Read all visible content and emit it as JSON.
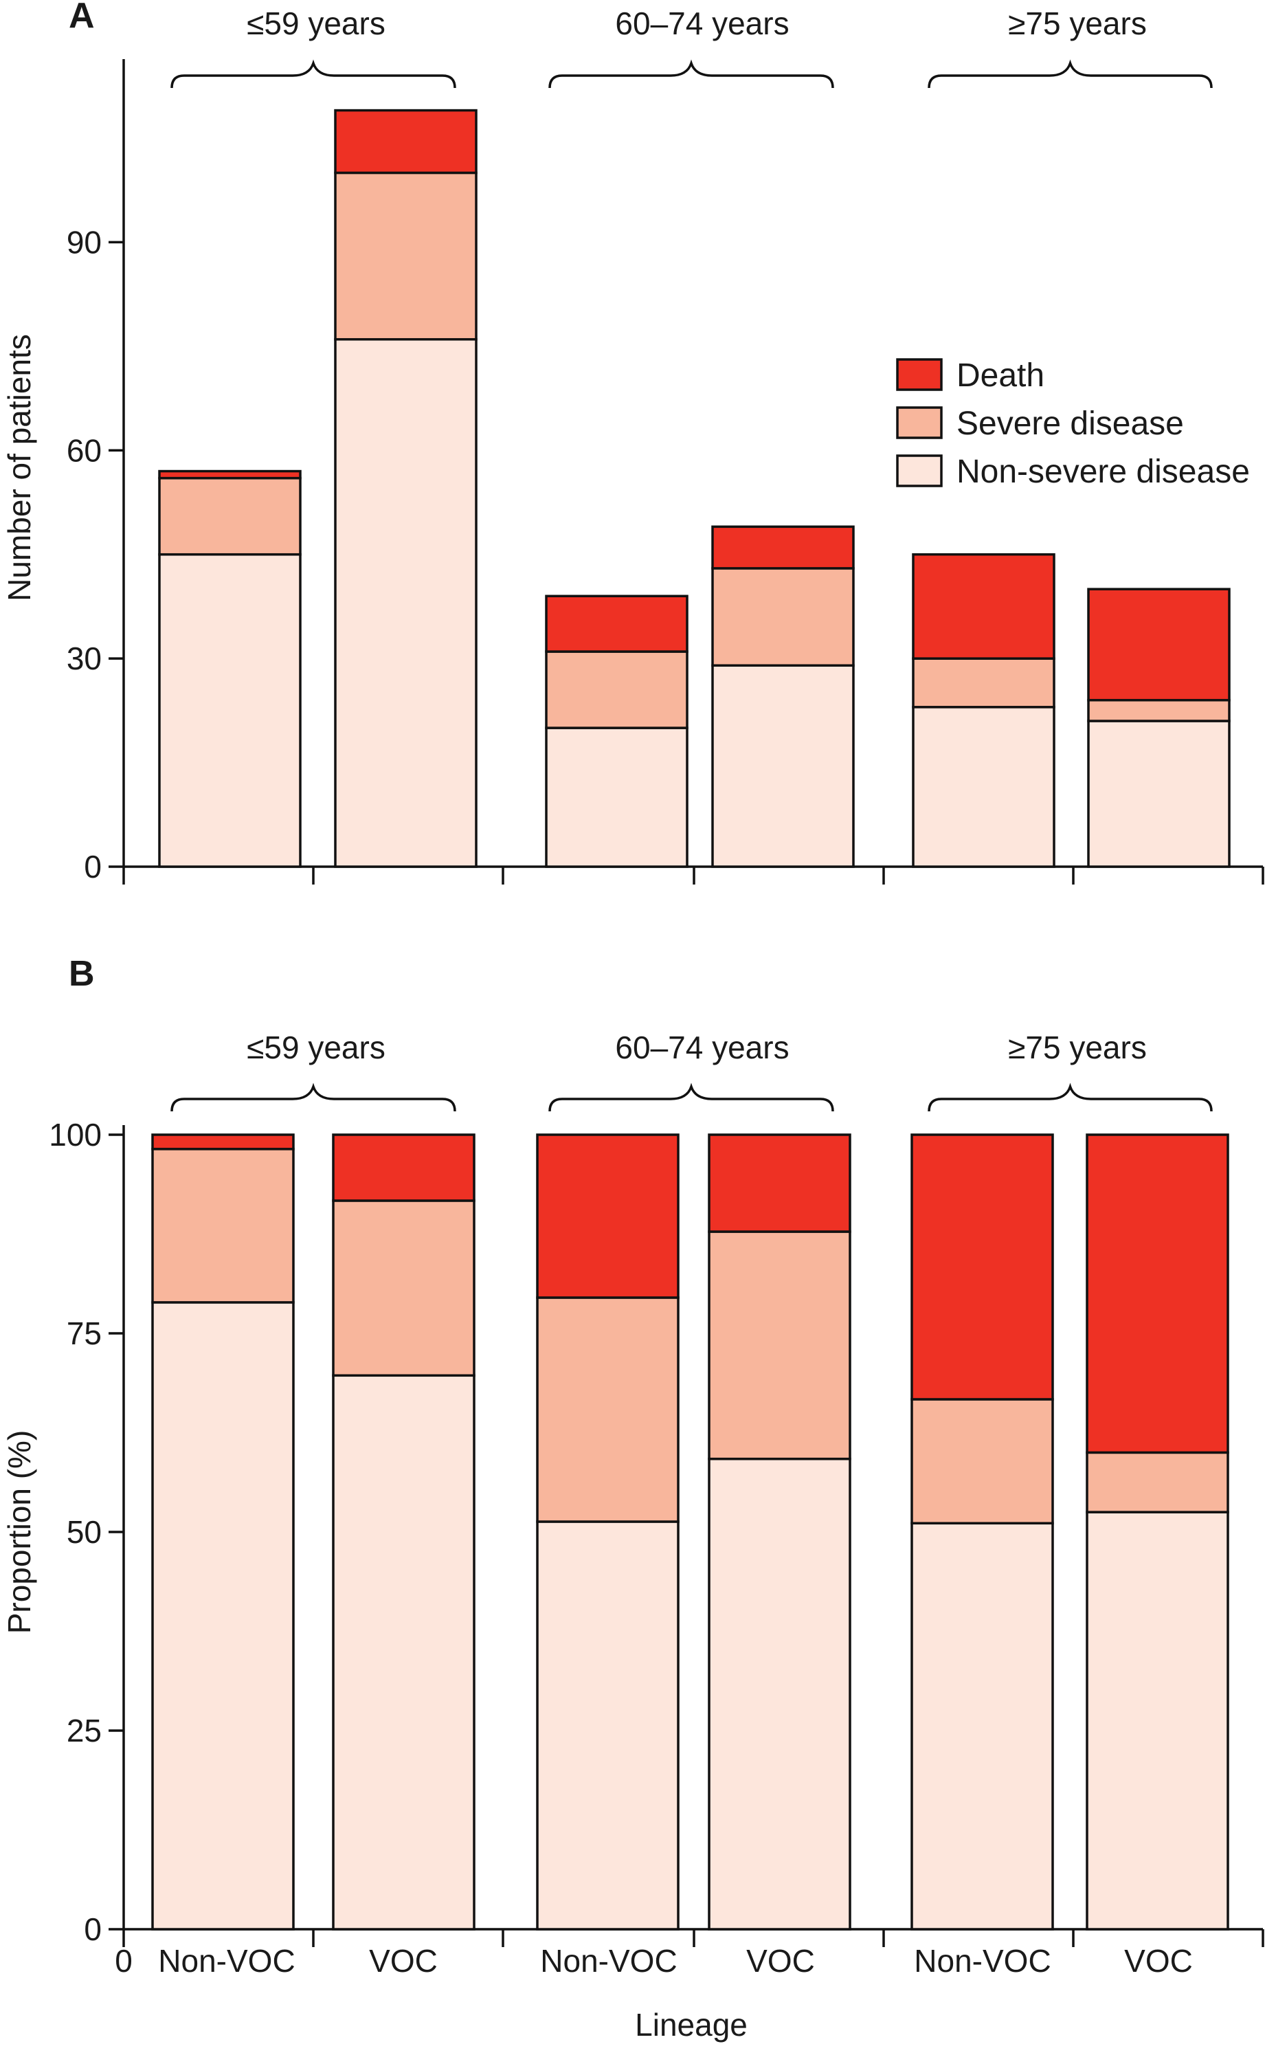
{
  "figure": {
    "xaxis_zero_label": "0",
    "xlabel": "Lineage",
    "legend": [
      {
        "label": "Death",
        "color": "#ee3124"
      },
      {
        "label": "Severe disease",
        "color": "#f8b69c"
      },
      {
        "label": "Non-severe disease",
        "color": "#fde6dc"
      }
    ],
    "groups": [
      {
        "label": "≤59 years",
        "categories": [
          "Non-VOC",
          "VOC"
        ]
      },
      {
        "label": "60–74 years",
        "categories": [
          "Non-VOC",
          "VOC"
        ]
      },
      {
        "label": "≥75 years",
        "categories": [
          "Non-VOC",
          "VOC"
        ]
      }
    ]
  },
  "chart_data": [
    {
      "panel": "A",
      "type": "bar",
      "stacked": true,
      "ylabel": "Number of patients",
      "ylim": [
        0,
        115
      ],
      "yticks": [
        0,
        30,
        60,
        90
      ],
      "groups": [
        "≤59 years",
        "≤59 years",
        "60–74 years",
        "60–74 years",
        "≥75 years",
        "≥75 years"
      ],
      "categories": [
        "Non-VOC",
        "VOC",
        "Non-VOC",
        "VOC",
        "Non-VOC",
        "VOC"
      ],
      "series": [
        {
          "name": "Non-severe disease",
          "color": "#fde6dc",
          "values": [
            45,
            76,
            20,
            29,
            23,
            21
          ]
        },
        {
          "name": "Severe disease",
          "color": "#f8b69c",
          "values": [
            11,
            24,
            11,
            14,
            7,
            3
          ]
        },
        {
          "name": "Death",
          "color": "#ee3124",
          "values": [
            1,
            9,
            8,
            6,
            15,
            16
          ]
        }
      ],
      "legend_position": "top-right",
      "grid": false
    },
    {
      "panel": "B",
      "type": "bar",
      "stacked": true,
      "ylabel": "Proportion (%)",
      "ylim": [
        0,
        100
      ],
      "yticks": [
        0,
        25,
        50,
        75,
        100
      ],
      "groups": [
        "≤59 years",
        "≤59 years",
        "60–74 years",
        "60–74 years",
        "≥75 years",
        "≥75 years"
      ],
      "categories": [
        "Non-VOC",
        "VOC",
        "Non-VOC",
        "VOC",
        "Non-VOC",
        "VOC"
      ],
      "series": [
        {
          "name": "Non-severe disease",
          "color": "#fde6dc",
          "values": [
            78.9,
            69.7,
            51.3,
            59.2,
            51.1,
            52.5
          ]
        },
        {
          "name": "Severe disease",
          "color": "#f8b69c",
          "values": [
            19.3,
            22.0,
            28.2,
            28.6,
            15.6,
            7.5
          ]
        },
        {
          "name": "Death",
          "color": "#ee3124",
          "values": [
            1.8,
            8.3,
            20.5,
            12.2,
            33.3,
            40.0
          ]
        }
      ],
      "grid": false
    }
  ]
}
